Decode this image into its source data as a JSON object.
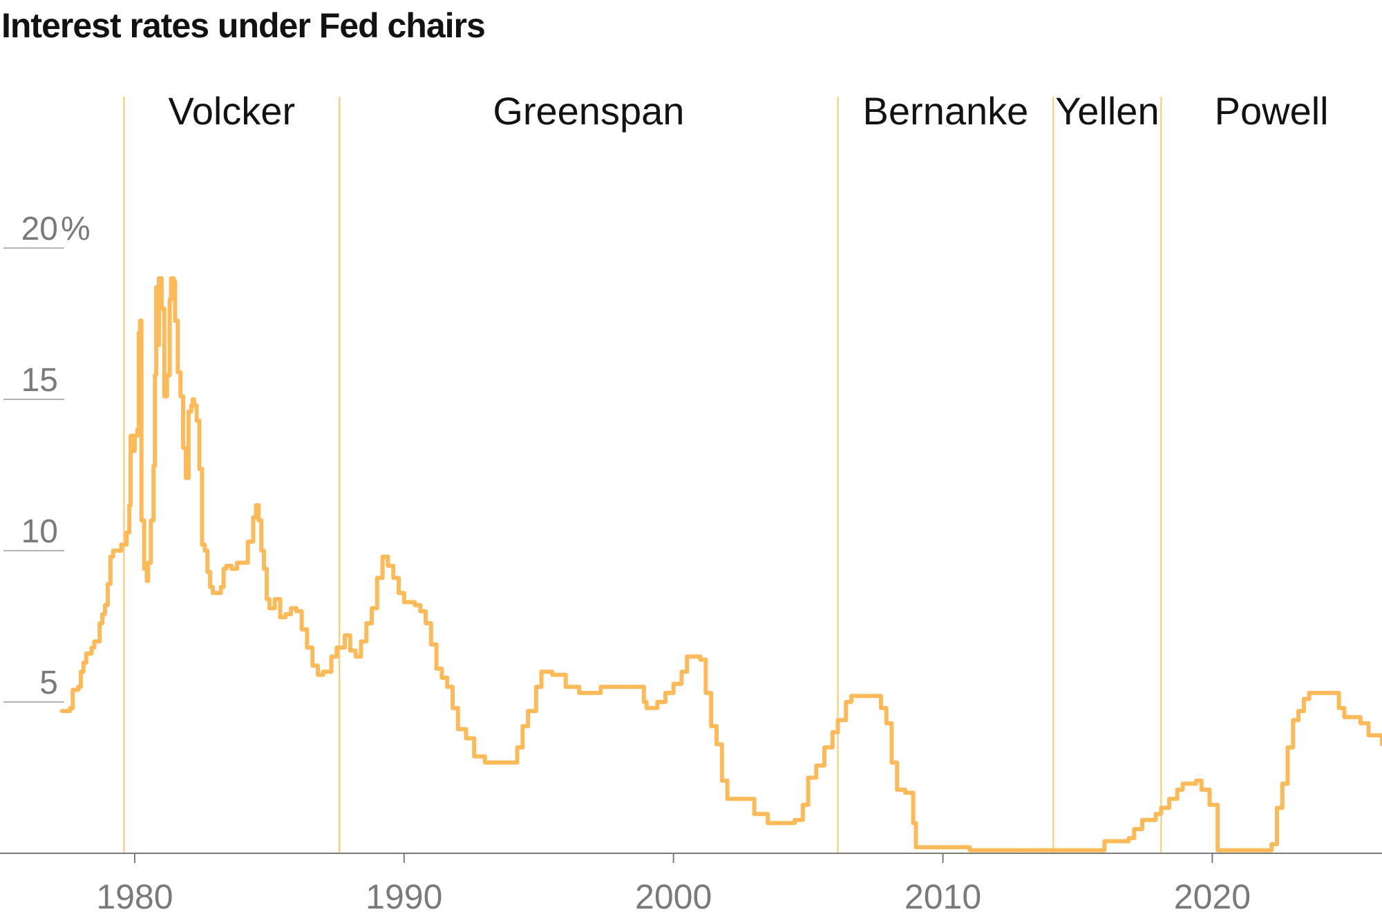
{
  "chart_data": {
    "type": "line",
    "title": "Interest rates under Fed chairs",
    "xlabel": "",
    "ylabel": "",
    "y_unit": "%",
    "xlim": [
      1975.0,
      2026.3
    ],
    "ylim": [
      0,
      22
    ],
    "x_ticks": [
      "1980",
      "1990",
      "2000",
      "2010",
      "2020"
    ],
    "y_ticks": [
      "20",
      "15",
      "10",
      "5"
    ],
    "line_color": "#FDBA58",
    "era_line_color": "#FDC867",
    "grid": false,
    "eras": [
      {
        "name": "Volcker",
        "start": 1979.6
      },
      {
        "name": "Greenspan",
        "start": 1987.6
      },
      {
        "name": "Bernanke",
        "start": 2006.1
      },
      {
        "name": "Yellen",
        "start": 2014.1
      },
      {
        "name": "Powell",
        "start": 2018.1
      }
    ],
    "series": [
      {
        "points": [
          [
            1977.3,
            4.7
          ],
          [
            1977.6,
            4.8
          ],
          [
            1977.7,
            5.4
          ],
          [
            1977.9,
            5.5
          ],
          [
            1978.0,
            6.0
          ],
          [
            1978.1,
            6.3
          ],
          [
            1978.2,
            6.6
          ],
          [
            1978.4,
            6.8
          ],
          [
            1978.5,
            7.0
          ],
          [
            1978.7,
            7.6
          ],
          [
            1978.8,
            7.9
          ],
          [
            1978.9,
            8.2
          ],
          [
            1979.0,
            8.9
          ],
          [
            1979.1,
            9.8
          ],
          [
            1979.2,
            10.0
          ],
          [
            1979.5,
            10.2
          ],
          [
            1979.7,
            10.6
          ],
          [
            1979.8,
            11.5
          ],
          [
            1979.85,
            13.8
          ],
          [
            1979.95,
            13.3
          ],
          [
            1980.0,
            13.8
          ],
          [
            1980.1,
            14.0
          ],
          [
            1980.15,
            17.2
          ],
          [
            1980.2,
            17.6
          ],
          [
            1980.25,
            11.0
          ],
          [
            1980.35,
            9.4
          ],
          [
            1980.45,
            9.0
          ],
          [
            1980.5,
            9.6
          ],
          [
            1980.6,
            11.0
          ],
          [
            1980.7,
            12.8
          ],
          [
            1980.75,
            15.8
          ],
          [
            1980.8,
            18.7
          ],
          [
            1980.85,
            16.8
          ],
          [
            1980.9,
            19.0
          ],
          [
            1981.0,
            18.0
          ],
          [
            1981.1,
            15.1
          ],
          [
            1981.2,
            15.8
          ],
          [
            1981.3,
            18.3
          ],
          [
            1981.35,
            19.0
          ],
          [
            1981.45,
            18.9
          ],
          [
            1981.5,
            17.6
          ],
          [
            1981.6,
            15.9
          ],
          [
            1981.7,
            15.1
          ],
          [
            1981.8,
            13.4
          ],
          [
            1981.9,
            12.4
          ],
          [
            1982.0,
            14.6
          ],
          [
            1982.1,
            14.8
          ],
          [
            1982.15,
            15.0
          ],
          [
            1982.2,
            14.8
          ],
          [
            1982.3,
            14.3
          ],
          [
            1982.4,
            12.7
          ],
          [
            1982.5,
            10.2
          ],
          [
            1982.6,
            10.0
          ],
          [
            1982.7,
            9.3
          ],
          [
            1982.8,
            8.8
          ],
          [
            1982.9,
            8.6
          ],
          [
            1983.0,
            8.6
          ],
          [
            1983.2,
            8.8
          ],
          [
            1983.3,
            9.4
          ],
          [
            1983.4,
            9.5
          ],
          [
            1983.6,
            9.4
          ],
          [
            1983.8,
            9.6
          ],
          [
            1984.0,
            9.6
          ],
          [
            1984.2,
            10.3
          ],
          [
            1984.4,
            11.1
          ],
          [
            1984.5,
            11.5
          ],
          [
            1984.6,
            11.0
          ],
          [
            1984.7,
            10.0
          ],
          [
            1984.8,
            9.4
          ],
          [
            1984.9,
            8.4
          ],
          [
            1985.0,
            8.1
          ],
          [
            1985.2,
            8.4
          ],
          [
            1985.4,
            7.8
          ],
          [
            1985.6,
            7.9
          ],
          [
            1985.8,
            8.1
          ],
          [
            1986.0,
            8.0
          ],
          [
            1986.2,
            7.4
          ],
          [
            1986.4,
            6.8
          ],
          [
            1986.6,
            6.2
          ],
          [
            1986.8,
            5.9
          ],
          [
            1987.0,
            6.0
          ],
          [
            1987.3,
            6.5
          ],
          [
            1987.5,
            6.8
          ],
          [
            1987.7,
            6.8
          ],
          [
            1987.8,
            7.2
          ],
          [
            1988.0,
            6.7
          ],
          [
            1988.2,
            6.5
          ],
          [
            1988.4,
            7.0
          ],
          [
            1988.6,
            7.6
          ],
          [
            1988.8,
            8.1
          ],
          [
            1989.0,
            9.1
          ],
          [
            1989.2,
            9.8
          ],
          [
            1989.4,
            9.5
          ],
          [
            1989.6,
            9.1
          ],
          [
            1989.8,
            8.6
          ],
          [
            1990.0,
            8.3
          ],
          [
            1990.4,
            8.2
          ],
          [
            1990.6,
            8.0
          ],
          [
            1990.8,
            7.6
          ],
          [
            1991.0,
            6.9
          ],
          [
            1991.2,
            6.1
          ],
          [
            1991.4,
            5.8
          ],
          [
            1991.6,
            5.5
          ],
          [
            1991.8,
            4.8
          ],
          [
            1992.0,
            4.1
          ],
          [
            1992.3,
            3.8
          ],
          [
            1992.6,
            3.2
          ],
          [
            1993.0,
            3.0
          ],
          [
            1993.5,
            3.0
          ],
          [
            1994.0,
            3.0
          ],
          [
            1994.2,
            3.5
          ],
          [
            1994.4,
            4.2
          ],
          [
            1994.6,
            4.7
          ],
          [
            1994.9,
            5.5
          ],
          [
            1995.1,
            6.0
          ],
          [
            1995.5,
            5.9
          ],
          [
            1996.0,
            5.5
          ],
          [
            1996.5,
            5.3
          ],
          [
            1997.0,
            5.3
          ],
          [
            1997.3,
            5.5
          ],
          [
            1998.0,
            5.5
          ],
          [
            1998.7,
            5.5
          ],
          [
            1998.9,
            5.0
          ],
          [
            1999.0,
            4.8
          ],
          [
            1999.4,
            5.0
          ],
          [
            1999.7,
            5.3
          ],
          [
            2000.0,
            5.6
          ],
          [
            2000.3,
            6.0
          ],
          [
            2000.5,
            6.5
          ],
          [
            2001.0,
            6.4
          ],
          [
            2001.2,
            5.3
          ],
          [
            2001.4,
            4.2
          ],
          [
            2001.6,
            3.6
          ],
          [
            2001.8,
            2.4
          ],
          [
            2002.0,
            1.8
          ],
          [
            2002.6,
            1.8
          ],
          [
            2003.0,
            1.3
          ],
          [
            2003.5,
            1.0
          ],
          [
            2004.5,
            1.1
          ],
          [
            2004.8,
            1.6
          ],
          [
            2005.0,
            2.5
          ],
          [
            2005.3,
            2.9
          ],
          [
            2005.6,
            3.5
          ],
          [
            2005.9,
            4.0
          ],
          [
            2006.1,
            4.4
          ],
          [
            2006.4,
            5.0
          ],
          [
            2006.6,
            5.2
          ],
          [
            2007.0,
            5.2
          ],
          [
            2007.5,
            5.2
          ],
          [
            2007.7,
            4.8
          ],
          [
            2007.9,
            4.3
          ],
          [
            2008.1,
            3.0
          ],
          [
            2008.3,
            2.1
          ],
          [
            2008.6,
            2.0
          ],
          [
            2008.9,
            1.0
          ],
          [
            2009.0,
            0.2
          ],
          [
            2011.0,
            0.1
          ],
          [
            2013.0,
            0.1
          ],
          [
            2015.9,
            0.1
          ],
          [
            2016.0,
            0.4
          ],
          [
            2016.9,
            0.5
          ],
          [
            2017.1,
            0.8
          ],
          [
            2017.4,
            1.1
          ],
          [
            2017.9,
            1.3
          ],
          [
            2018.1,
            1.5
          ],
          [
            2018.4,
            1.8
          ],
          [
            2018.7,
            2.1
          ],
          [
            2018.9,
            2.3
          ],
          [
            2019.4,
            2.4
          ],
          [
            2019.6,
            2.1
          ],
          [
            2019.9,
            1.6
          ],
          [
            2020.2,
            0.1
          ],
          [
            2021.0,
            0.1
          ],
          [
            2022.0,
            0.1
          ],
          [
            2022.2,
            0.3
          ],
          [
            2022.4,
            1.5
          ],
          [
            2022.6,
            2.3
          ],
          [
            2022.8,
            3.5
          ],
          [
            2023.0,
            4.4
          ],
          [
            2023.2,
            4.7
          ],
          [
            2023.4,
            5.1
          ],
          [
            2023.6,
            5.3
          ],
          [
            2024.4,
            5.3
          ],
          [
            2024.7,
            4.8
          ],
          [
            2024.9,
            4.5
          ],
          [
            2025.5,
            4.3
          ],
          [
            2025.8,
            3.9
          ],
          [
            2026.3,
            3.6
          ]
        ]
      }
    ]
  }
}
